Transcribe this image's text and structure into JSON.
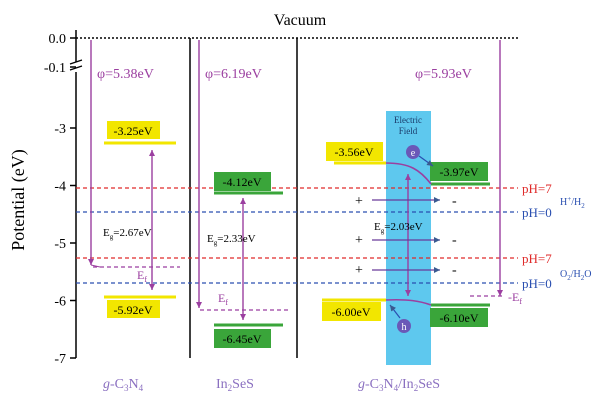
{
  "title": "Vacuum",
  "y_axis": {
    "label": "Potential (eV)",
    "ticks": [
      {
        "value": 0.0,
        "label": "0.0"
      },
      {
        "value": -0.1,
        "label": "-0.1"
      },
      {
        "value": -3,
        "label": "-3"
      },
      {
        "value": -4,
        "label": "-4"
      },
      {
        "value": -5,
        "label": "-5"
      },
      {
        "value": -6,
        "label": "-6"
      },
      {
        "value": -7,
        "label": "-7"
      }
    ]
  },
  "work_functions": {
    "gc3n4": "φ=5.38eV",
    "in2ses": "φ=6.19eV",
    "hetero": "φ=5.93eV"
  },
  "bands": {
    "gc3n4_cb": "-3.25eV",
    "gc3n4_vb": "-5.92eV",
    "gc3n4_gap": "E =2.67eV",
    "gc3n4_gap_sub": "g",
    "in2ses_cb": "-4.12eV",
    "in2ses_vb": "-6.45eV",
    "in2ses_gap": "E =2.33eV",
    "in2ses_gap_sub": "g",
    "hetero_cb_left": "-3.56eV",
    "hetero_cb_right": "-3.97eV",
    "hetero_vb_left": "-6.00eV",
    "hetero_vb_right": "-6.10eV",
    "hetero_gap": "E =2.03eV",
    "hetero_gap_sub": "g"
  },
  "fermi": {
    "label": "E",
    "sub": "f"
  },
  "electric_field": [
    "Electric",
    "Field"
  ],
  "carriers": {
    "electron": "e",
    "hole": "h"
  },
  "charges": {
    "plus": "+",
    "minus": "-"
  },
  "ph_lines": {
    "red_label": "pH=7",
    "blue_label": "pH=0",
    "h_couple": "H",
    "h_couple_sup": "+",
    "h_couple_rest": "/H",
    "h_couple_sub": "2",
    "o_couple": "O",
    "o_couple_sub": "2",
    "o_couple_rest": "/H",
    "o_couple_sub2": "2",
    "o_couple_end": "O"
  },
  "materials": {
    "gc3n4": [
      "g",
      "-C",
      "3",
      "N",
      "4"
    ],
    "in2ses": [
      "In",
      "2",
      "SeS"
    ],
    "hetero": [
      "g",
      "-C",
      "3",
      "N",
      "4",
      "/In",
      "2",
      "SeS"
    ]
  },
  "colors": {
    "purple": "#9b3fa0",
    "yellow": "#f2e600",
    "green": "#3aa53a",
    "cyan": "#5ec8ee",
    "red": "#e02a2a",
    "blue": "#2a4fb0",
    "label_purple": "#8a6fc0"
  }
}
